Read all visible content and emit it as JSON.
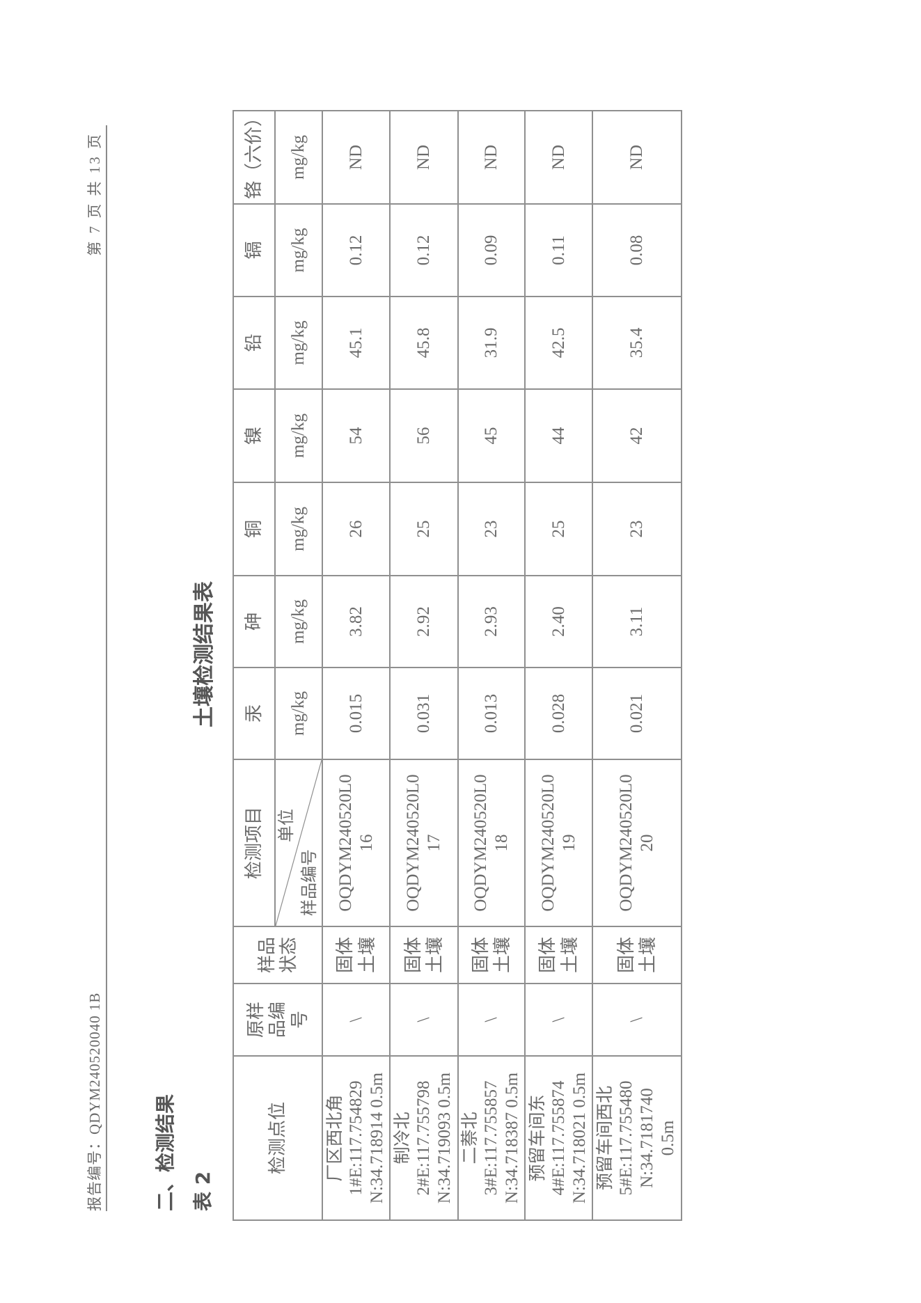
{
  "header": {
    "report_no": "报告编号：QDYM240520040 1B",
    "page": "第 7 页 共 13 页"
  },
  "section_title": "二、检测结果",
  "table_label": "表 2",
  "table_title": "土壤检测结果表",
  "table": {
    "headers": {
      "location": "检测点位",
      "orig_id": "原样品编号",
      "state": "样品状态",
      "item": "检测项目",
      "unit": "单位",
      "sample_id": "样品编号"
    },
    "analytes": [
      {
        "name": "汞",
        "unit": "mg/kg"
      },
      {
        "name": "砷",
        "unit": "mg/kg"
      },
      {
        "name": "铜",
        "unit": "mg/kg"
      },
      {
        "name": "镍",
        "unit": "mg/kg"
      },
      {
        "name": "铅",
        "unit": "mg/kg"
      },
      {
        "name": "镉",
        "unit": "mg/kg"
      },
      {
        "name": "铬（六价）",
        "unit": "mg/kg"
      }
    ],
    "rows": [
      {
        "location": [
          "厂区西北角",
          "1#E:117.754829",
          "N:34.718914 0.5m"
        ],
        "orig_id": "\\",
        "state": "固体土壤",
        "sample_id": [
          "OQDYM240520L0",
          "16"
        ],
        "values": [
          "0.015",
          "3.82",
          "26",
          "54",
          "45.1",
          "0.12",
          "ND"
        ]
      },
      {
        "location": [
          "制冷北",
          "2#E:117.755798",
          "N:34.719093 0.5m"
        ],
        "orig_id": "\\",
        "state": "固体土壤",
        "sample_id": [
          "OQDYM240520L0",
          "17"
        ],
        "values": [
          "0.031",
          "2.92",
          "25",
          "56",
          "45.8",
          "0.12",
          "ND"
        ]
      },
      {
        "location": [
          "二萘北",
          "3#E:117.755857",
          "N:34.718387 0.5m"
        ],
        "orig_id": "\\",
        "state": "固体土壤",
        "sample_id": [
          "OQDYM240520L0",
          "18"
        ],
        "values": [
          "0.013",
          "2.93",
          "23",
          "45",
          "31.9",
          "0.09",
          "ND"
        ]
      },
      {
        "location": [
          "预留车间东",
          "4#E:117.755874",
          "N:34.718021 0.5m"
        ],
        "orig_id": "\\",
        "state": "固体土壤",
        "sample_id": [
          "OQDYM240520L0",
          "19"
        ],
        "values": [
          "0.028",
          "2.40",
          "25",
          "44",
          "42.5",
          "0.11",
          "ND"
        ]
      },
      {
        "location": [
          "预留车间西北",
          "5#E:117.755480",
          "N:34.7181740",
          "0.5m"
        ],
        "orig_id": "\\",
        "state": "固体土壤",
        "sample_id": [
          "OQDYM240520L0",
          "20"
        ],
        "values": [
          "0.021",
          "3.11",
          "23",
          "42",
          "35.4",
          "0.08",
          "ND"
        ]
      }
    ]
  }
}
